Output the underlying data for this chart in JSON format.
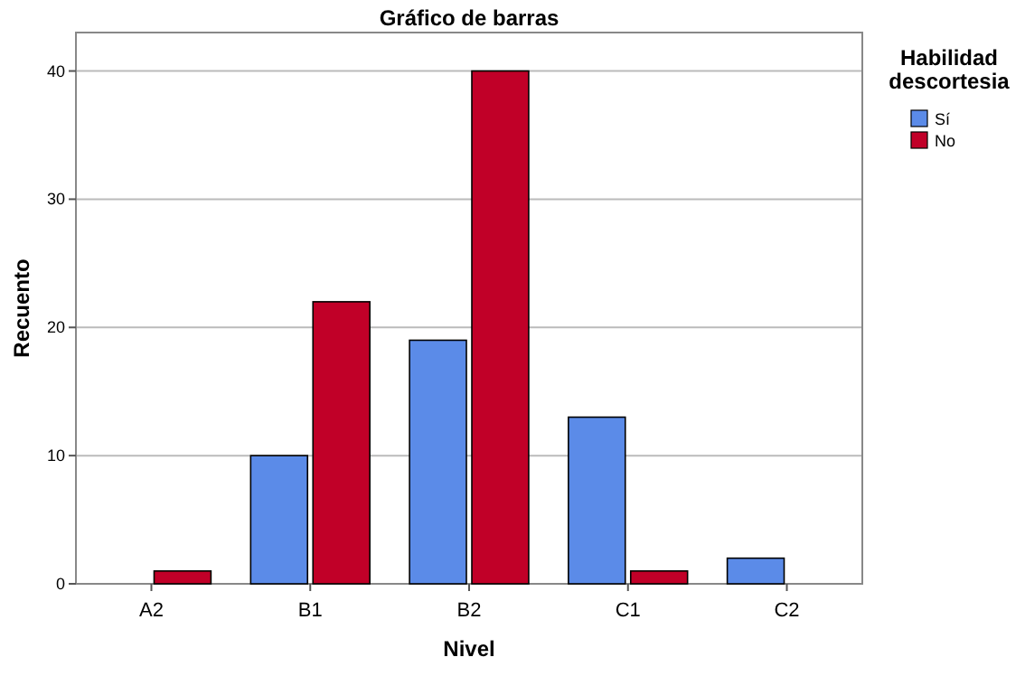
{
  "chart_data": {
    "type": "bar",
    "title": "Gráfico de barras",
    "xlabel": "Nivel",
    "ylabel": "Recuento",
    "legend_title": "Habilidad descortesia",
    "categories": [
      "A2",
      "B1",
      "B2",
      "C1",
      "C2"
    ],
    "series": [
      {
        "name": "Sí",
        "color": "#5b8be8",
        "values": [
          0,
          10,
          19,
          13,
          2
        ]
      },
      {
        "name": "No",
        "color": "#c10028",
        "values": [
          1,
          22,
          40,
          1,
          0
        ]
      }
    ],
    "ylim": [
      0,
      43
    ],
    "yticks": [
      0,
      10,
      20,
      30,
      40
    ],
    "grid": "y",
    "legend": "right"
  }
}
